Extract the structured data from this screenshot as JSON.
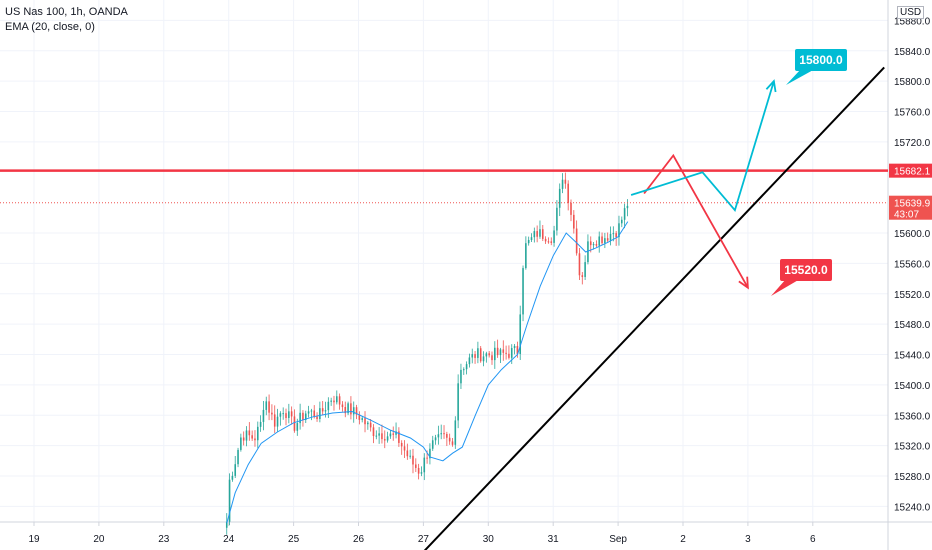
{
  "header": {
    "symbol": "US Nas 100, 1h, OANDA",
    "indicator": "EMA (20, close, 0)",
    "currency": "USD"
  },
  "chart_data": {
    "type": "candlestick",
    "y_ticks": [
      15880.0,
      15840.0,
      15800.0,
      15760.0,
      15720.0,
      15600.0,
      15560.0,
      15520.0,
      15480.0,
      15440.0,
      15400.0,
      15360.0,
      15320.0,
      15280.0,
      15240.0
    ],
    "x_ticks": [
      {
        "label": "19",
        "d": 0
      },
      {
        "label": "20",
        "d": 1
      },
      {
        "label": "23",
        "d": 2
      },
      {
        "label": "24",
        "d": 3
      },
      {
        "label": "25",
        "d": 4
      },
      {
        "label": "26",
        "d": 5
      },
      {
        "label": "27",
        "d": 6
      },
      {
        "label": "30",
        "d": 7
      },
      {
        "label": "31",
        "d": 8
      },
      {
        "label": "Sep",
        "d": 9
      },
      {
        "label": "2",
        "d": 10
      },
      {
        "label": "3",
        "d": 11
      },
      {
        "label": "6",
        "d": 12
      }
    ],
    "resistance_level": {
      "label": "15682.1",
      "value": 15682.1
    },
    "last_price": {
      "label": "15639.9",
      "value": 15639.9,
      "countdown": "43:07"
    },
    "targets": [
      {
        "label": "15800.0",
        "value": 15800.0,
        "color": "#00bcd4"
      },
      {
        "label": "15520.0",
        "value": 15520.0,
        "color": "#f23645"
      }
    ],
    "trendline": [
      {
        "d": 6.0,
        "value": 15180
      },
      {
        "d": 13.1,
        "value": 15818
      }
    ],
    "scenario_up": [
      {
        "d": 9.2,
        "value": 15650
      },
      {
        "d": 10.3,
        "value": 15680
      },
      {
        "d": 10.8,
        "value": 15630
      },
      {
        "d": 11.4,
        "value": 15800
      }
    ],
    "scenario_down": [
      {
        "d": 9.4,
        "value": 15652
      },
      {
        "d": 9.85,
        "value": 15702
      },
      {
        "d": 11.0,
        "value": 15528
      }
    ],
    "ema": [
      {
        "d": 2.97,
        "value": 15218
      },
      {
        "d": 3.1,
        "value": 15258
      },
      {
        "d": 3.3,
        "value": 15295
      },
      {
        "d": 3.5,
        "value": 15323
      },
      {
        "d": 3.75,
        "value": 15338
      },
      {
        "d": 4.0,
        "value": 15350
      },
      {
        "d": 4.3,
        "value": 15358
      },
      {
        "d": 4.6,
        "value": 15363
      },
      {
        "d": 4.9,
        "value": 15365
      },
      {
        "d": 5.2,
        "value": 15353
      },
      {
        "d": 5.5,
        "value": 15340
      },
      {
        "d": 5.8,
        "value": 15330
      },
      {
        "d": 6.0,
        "value": 15318
      },
      {
        "d": 6.1,
        "value": 15305
      },
      {
        "d": 6.3,
        "value": 15300
      },
      {
        "d": 6.45,
        "value": 15310
      },
      {
        "d": 6.6,
        "value": 15318
      },
      {
        "d": 6.8,
        "value": 15360
      },
      {
        "d": 7.0,
        "value": 15400
      },
      {
        "d": 7.2,
        "value": 15420
      },
      {
        "d": 7.45,
        "value": 15440
      },
      {
        "d": 7.6,
        "value": 15480
      },
      {
        "d": 7.8,
        "value": 15530
      },
      {
        "d": 8.0,
        "value": 15570
      },
      {
        "d": 8.2,
        "value": 15600
      },
      {
        "d": 8.35,
        "value": 15588
      },
      {
        "d": 8.5,
        "value": 15575
      },
      {
        "d": 8.65,
        "value": 15580
      },
      {
        "d": 8.85,
        "value": 15588
      },
      {
        "d": 9.0,
        "value": 15595
      },
      {
        "d": 9.15,
        "value": 15615
      }
    ],
    "anchors": [
      {
        "d": 2.97,
        "value": 15220
      },
      {
        "d": 3.0,
        "value": 15270
      },
      {
        "d": 3.1,
        "value": 15300
      },
      {
        "d": 3.2,
        "value": 15335
      },
      {
        "d": 3.4,
        "value": 15330
      },
      {
        "d": 3.5,
        "value": 15350
      },
      {
        "d": 3.55,
        "value": 15385
      },
      {
        "d": 3.7,
        "value": 15350
      },
      {
        "d": 3.85,
        "value": 15370
      },
      {
        "d": 4.0,
        "value": 15345
      },
      {
        "d": 4.2,
        "value": 15365
      },
      {
        "d": 4.4,
        "value": 15360
      },
      {
        "d": 4.6,
        "value": 15385
      },
      {
        "d": 4.8,
        "value": 15370
      },
      {
        "d": 5.0,
        "value": 15360
      },
      {
        "d": 5.2,
        "value": 15340
      },
      {
        "d": 5.4,
        "value": 15335
      },
      {
        "d": 5.6,
        "value": 15330
      },
      {
        "d": 5.8,
        "value": 15300
      },
      {
        "d": 5.95,
        "value": 15285
      },
      {
        "d": 6.1,
        "value": 15320
      },
      {
        "d": 6.3,
        "value": 15330
      },
      {
        "d": 6.45,
        "value": 15320
      },
      {
        "d": 6.55,
        "value": 15420
      },
      {
        "d": 6.8,
        "value": 15440
      },
      {
        "d": 7.0,
        "value": 15440
      },
      {
        "d": 7.2,
        "value": 15440
      },
      {
        "d": 7.45,
        "value": 15445
      },
      {
        "d": 7.55,
        "value": 15580
      },
      {
        "d": 7.75,
        "value": 15600
      },
      {
        "d": 8.0,
        "value": 15595
      },
      {
        "d": 8.15,
        "value": 15680
      },
      {
        "d": 8.25,
        "value": 15640
      },
      {
        "d": 8.35,
        "value": 15590
      },
      {
        "d": 8.42,
        "value": 15535
      },
      {
        "d": 8.55,
        "value": 15590
      },
      {
        "d": 8.8,
        "value": 15595
      },
      {
        "d": 9.0,
        "value": 15605
      },
      {
        "d": 9.15,
        "value": 15640
      }
    ]
  }
}
